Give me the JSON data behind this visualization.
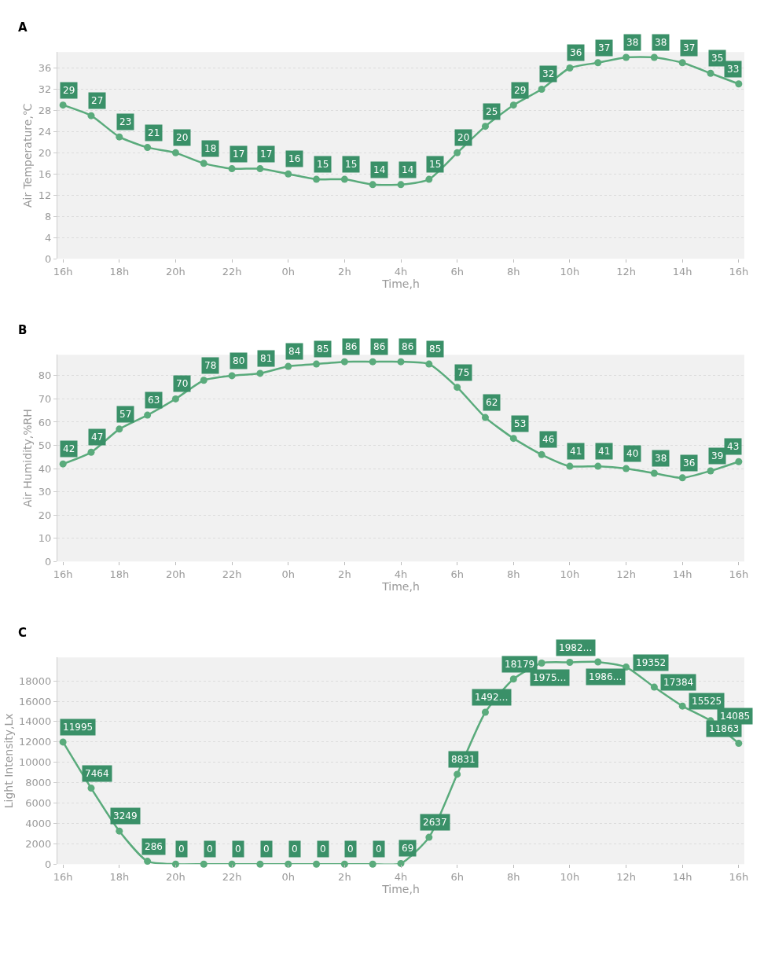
{
  "chart_data": [
    {
      "type": "line",
      "title": "A",
      "xlabel": "Time,h",
      "ylabel": "Air Temperature,℃",
      "categories": [
        "16h",
        null,
        "18h",
        null,
        "20h",
        null,
        "22h",
        null,
        "0h",
        null,
        "2h",
        null,
        "4h",
        null,
        "6h",
        null,
        "8h",
        null,
        "10h",
        null,
        "12h",
        null,
        "14h",
        null,
        "16h"
      ],
      "series": [
        {
          "color": "#5aab7c",
          "values": [
            29,
            27,
            23,
            21,
            20,
            18,
            17,
            17,
            16,
            15,
            15,
            14,
            14,
            15,
            20,
            25,
            29,
            32,
            36,
            37,
            38,
            38,
            37,
            35,
            33
          ]
        }
      ],
      "ylim": [
        0,
        39
      ],
      "yticks": [
        0,
        4,
        8,
        12,
        16,
        20,
        24,
        28,
        32,
        36
      ],
      "grid": "y",
      "marker": "circle",
      "line_style": "solid",
      "data_labels": true
    },
    {
      "type": "line",
      "title": "B",
      "xlabel": "Time,h",
      "ylabel": "Air Humidity,%RH",
      "categories": [
        "16h",
        null,
        "18h",
        null,
        "20h",
        null,
        "22h",
        null,
        "0h",
        null,
        "2h",
        null,
        "4h",
        null,
        "6h",
        null,
        "8h",
        null,
        "10h",
        null,
        "12h",
        null,
        "14h",
        null,
        "16h"
      ],
      "series": [
        {
          "color": "#5aab7c",
          "values": [
            42,
            47,
            57,
            63,
            70,
            78,
            80,
            81,
            84,
            85,
            86,
            86,
            86,
            85,
            75,
            62,
            53,
            46,
            41,
            41,
            40,
            38,
            36,
            39,
            43
          ]
        }
      ],
      "ylim": [
        0,
        89
      ],
      "yticks": [
        0,
        10,
        20,
        30,
        40,
        50,
        60,
        70,
        80
      ],
      "grid": "y",
      "marker": "circle",
      "line_style": "solid",
      "data_labels": true
    },
    {
      "type": "line",
      "title": "C",
      "xlabel": "Time,h",
      "ylabel": "Light Intensity,Lx",
      "categories": [
        "16h",
        null,
        "18h",
        null,
        "20h",
        null,
        "22h",
        null,
        "0h",
        null,
        "2h",
        null,
        "4h",
        null,
        "6h",
        null,
        "8h",
        null,
        "10h",
        null,
        "12h",
        null,
        "14h",
        null,
        "16h"
      ],
      "series": [
        {
          "color": "#5aab7c",
          "values": [
            11995,
            7464,
            3249,
            286,
            0,
            0,
            0,
            0,
            0,
            0,
            0,
            0,
            69,
            2637,
            8831,
            14920,
            18179,
            19750,
            19820,
            19860,
            19352,
            17384,
            15525,
            14085,
            11863
          ],
          "value_labels": [
            "11995",
            "7464",
            "3249",
            "286",
            "0",
            "0",
            "0",
            "0",
            "0",
            "0",
            "0",
            "0",
            "69",
            "2637",
            "8831",
            "1492…",
            "18179",
            "1975…",
            "1982…",
            "1986…",
            "19352",
            "17384",
            "15525",
            "14085",
            "11863"
          ]
        }
      ],
      "ylim": [
        0,
        20300
      ],
      "yticks": [
        0,
        2000,
        4000,
        6000,
        8000,
        10000,
        12000,
        14000,
        16000,
        18000
      ],
      "grid": "y",
      "marker": "circle",
      "line_style": "solid"
    }
  ]
}
